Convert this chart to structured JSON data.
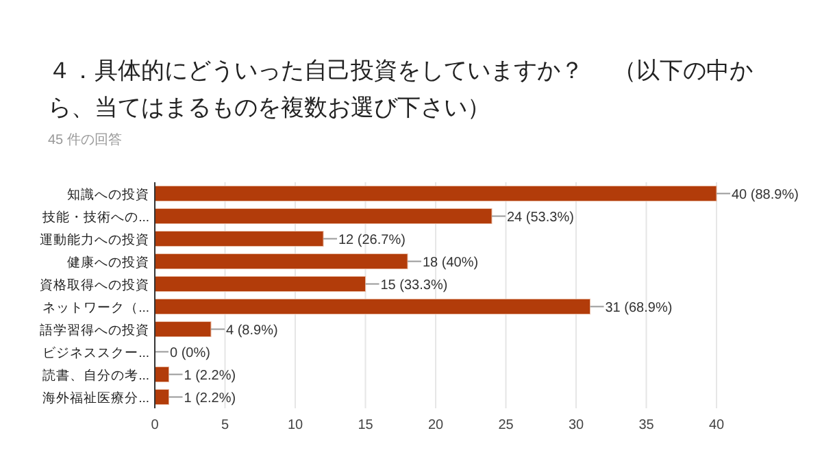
{
  "chart_data": {
    "type": "bar",
    "orientation": "horizontal",
    "title": "４．具体的にどういった自己投資をしていますか？　 （以下の中から、当てはまるものを複数お選び下さい）",
    "subtitle": "45 件の回答",
    "categories": [
      "知識への投資",
      "技能・技術への...",
      "運動能力への投資",
      "健康への投資",
      "資格取得への投資",
      "ネットワーク（...",
      "語学習得への投資",
      "ビジネススクー...",
      "読書、自分の考...",
      "海外福祉医療分..."
    ],
    "values": [
      40,
      24,
      12,
      18,
      15,
      31,
      4,
      0,
      1,
      1
    ],
    "value_labels": [
      "40 (88.9%)",
      "24 (53.3%)",
      "12 (26.7%)",
      "18 (40%)",
      "15 (33.3%)",
      "31 (68.9%)",
      "4 (8.9%)",
      "0 (0%)",
      "1 (2.2%)",
      "1 (2.2%)"
    ],
    "color": "#b23c0a",
    "xlim": [
      0,
      40
    ],
    "xticks": [
      0,
      5,
      10,
      15,
      20,
      25,
      30,
      35,
      40
    ],
    "grid": "x"
  }
}
